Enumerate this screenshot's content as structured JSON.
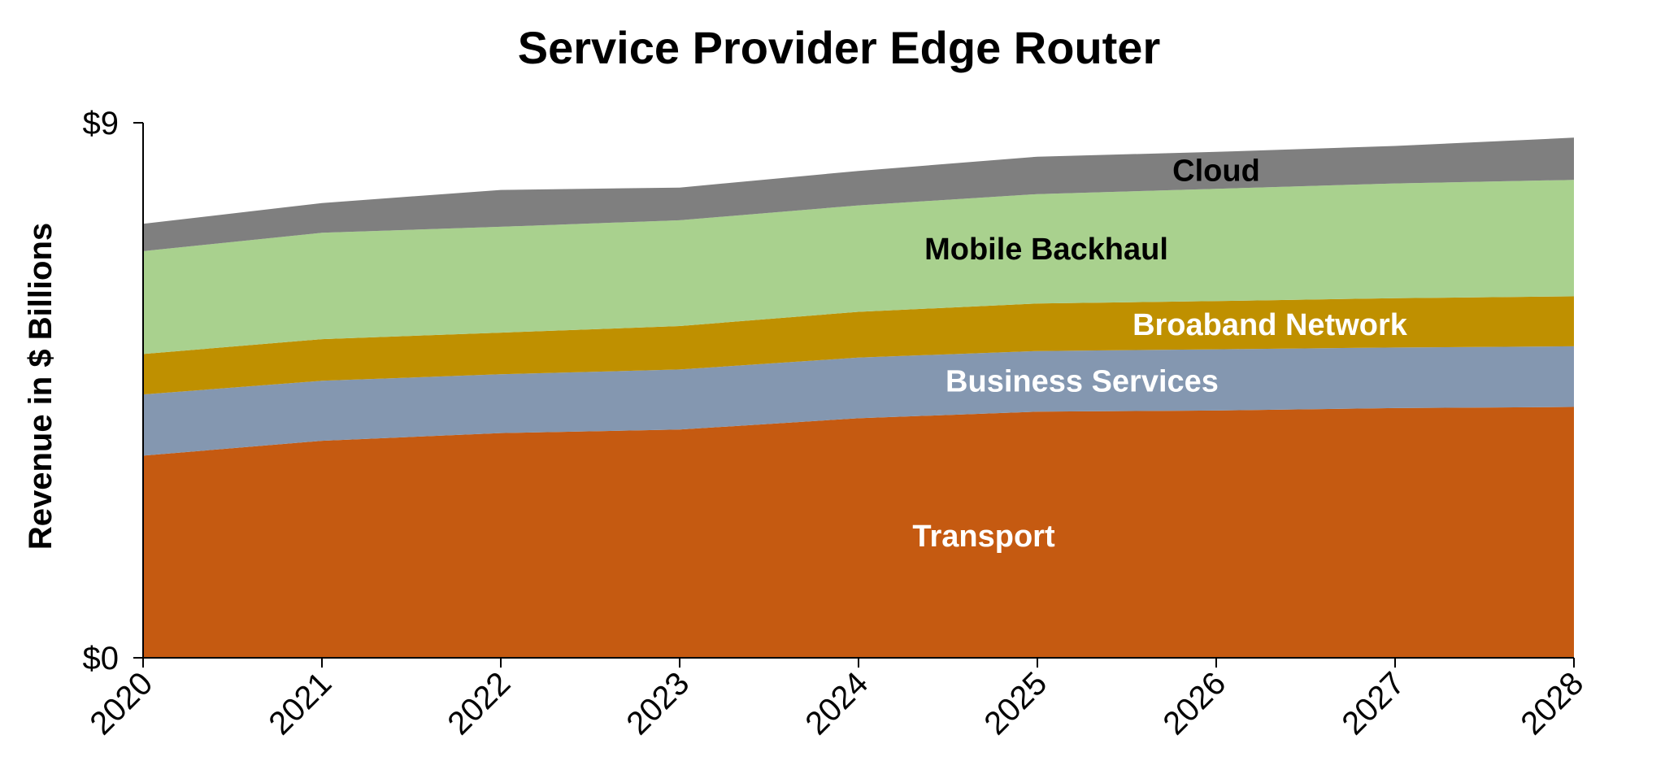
{
  "chart_data": {
    "type": "area",
    "stacked": true,
    "title": "Service Provider Edge Router",
    "xlabel": "",
    "ylabel": "Revenue in $ Billions",
    "categories": [
      "2020",
      "2021",
      "2022",
      "2023",
      "2024",
      "2025",
      "2026",
      "2027",
      "2028"
    ],
    "ylim": [
      0,
      9
    ],
    "y_tick_values": [
      0,
      9
    ],
    "y_tick_labels": [
      "$0",
      "$9"
    ],
    "grid": false,
    "legend": "none (series labeled directly on areas)",
    "series": [
      {
        "name": "Transport",
        "color": "#C55A11",
        "label_color": "#FFFFFF",
        "values": [
          3.4,
          3.65,
          3.78,
          3.84,
          4.03,
          4.14,
          4.16,
          4.2,
          4.22
        ]
      },
      {
        "name": "Business Services",
        "color": "#8497B0",
        "label_color": "#FFFFFF",
        "values": [
          1.03,
          1.01,
          0.99,
          1.01,
          1.02,
          1.02,
          1.03,
          1.02,
          1.02
        ]
      },
      {
        "name": "Broaband Network",
        "color": "#BF9000",
        "label_color": "#FFFFFF",
        "values": [
          0.68,
          0.7,
          0.7,
          0.73,
          0.77,
          0.8,
          0.81,
          0.83,
          0.84
        ]
      },
      {
        "name": "Mobile Backhaul",
        "color": "#A9D18E",
        "label_color": "#000000",
        "values": [
          1.73,
          1.79,
          1.78,
          1.78,
          1.79,
          1.84,
          1.89,
          1.93,
          1.96
        ]
      },
      {
        "name": "Cloud",
        "color": "#7F7F7F",
        "label_color": "#000000",
        "values": [
          0.46,
          0.5,
          0.62,
          0.55,
          0.58,
          0.63,
          0.62,
          0.63,
          0.71
        ]
      }
    ]
  }
}
